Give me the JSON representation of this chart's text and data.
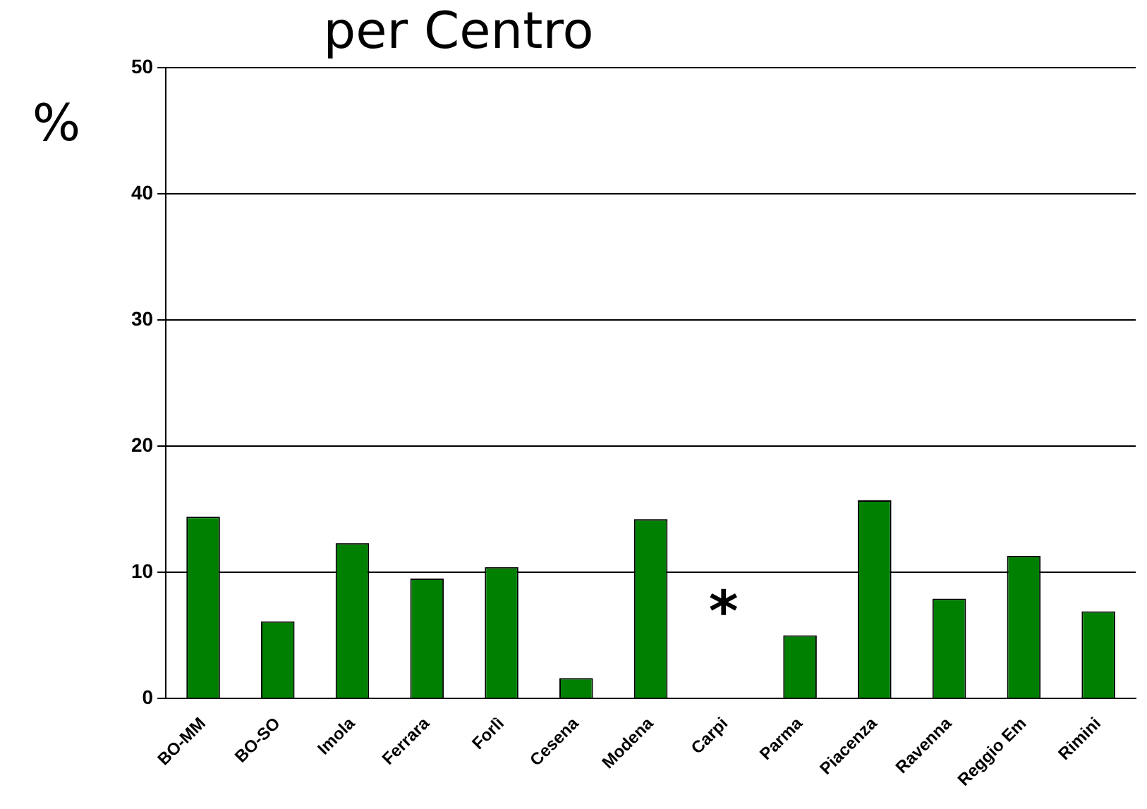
{
  "chart_data": {
    "type": "bar",
    "title": "per Centro",
    "ylabel": "%",
    "categories": [
      "BO-MM",
      "BO-SO",
      "Imola",
      "Ferrara",
      "Forlì",
      "Cesena",
      "Modena",
      "Carpi",
      "Parma",
      "Piacenza",
      "Ravenna",
      "Reggio Em",
      "Rimini"
    ],
    "values": [
      14.4,
      6.1,
      12.3,
      9.5,
      10.4,
      1.6,
      14.2,
      0,
      5.0,
      15.7,
      7.9,
      11.3,
      6.9
    ],
    "color": "#008000",
    "ylim": [
      0,
      50
    ],
    "yticks": [
      0,
      10,
      20,
      30,
      40,
      50
    ],
    "grid": "y",
    "legend": false,
    "annotations": [
      "*"
    ]
  }
}
